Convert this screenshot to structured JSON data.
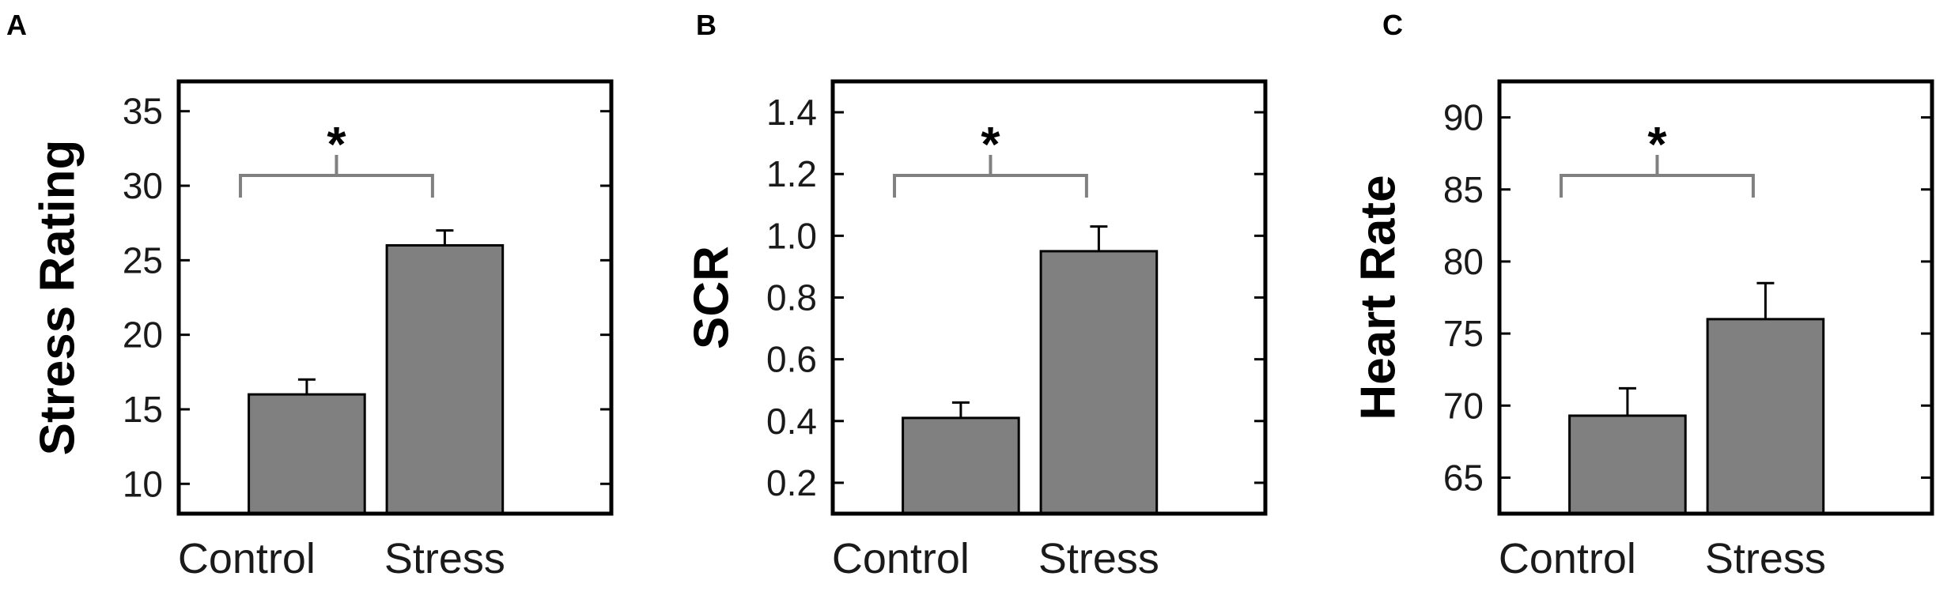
{
  "colors": {
    "bar": "#808080",
    "bar_edge": "#000000",
    "axis": "#000000",
    "bracket": "#808080"
  },
  "chart_data": [
    {
      "type": "bar",
      "panel": "A",
      "title": "",
      "xlabel": "",
      "ylabel": "Stress Rating",
      "categories": [
        "Control",
        "Stress"
      ],
      "values": [
        16,
        26
      ],
      "error": [
        1.0,
        1.0
      ],
      "ylim": [
        8,
        37
      ],
      "yticks": [
        10,
        15,
        20,
        25,
        30,
        35
      ],
      "ytick_labels": [
        "10",
        "15",
        "20",
        "25",
        "30",
        "35"
      ],
      "significance": "*"
    },
    {
      "type": "bar",
      "panel": "B",
      "title": "",
      "xlabel": "",
      "ylabel": "SCR",
      "categories": [
        "Control",
        "Stress"
      ],
      "values": [
        0.41,
        0.95
      ],
      "error": [
        0.05,
        0.08
      ],
      "ylim": [
        0.1,
        1.5
      ],
      "yticks": [
        0.2,
        0.4,
        0.6,
        0.8,
        1.0,
        1.2,
        1.4
      ],
      "ytick_labels": [
        "0.2",
        "0.4",
        "0.6",
        "0.8",
        "1.0",
        "1.2",
        "1.4"
      ],
      "significance": "*"
    },
    {
      "type": "bar",
      "panel": "C",
      "title": "",
      "xlabel": "",
      "ylabel": "Heart Rate",
      "categories": [
        "Control",
        "Stress"
      ],
      "values": [
        69.3,
        76
      ],
      "error": [
        1.9,
        2.5
      ],
      "ylim": [
        62.5,
        92.5
      ],
      "yticks": [
        65,
        70,
        75,
        80,
        85,
        90
      ],
      "ytick_labels": [
        "65",
        "70",
        "75",
        "80",
        "85",
        "90"
      ],
      "significance": "*"
    }
  ]
}
